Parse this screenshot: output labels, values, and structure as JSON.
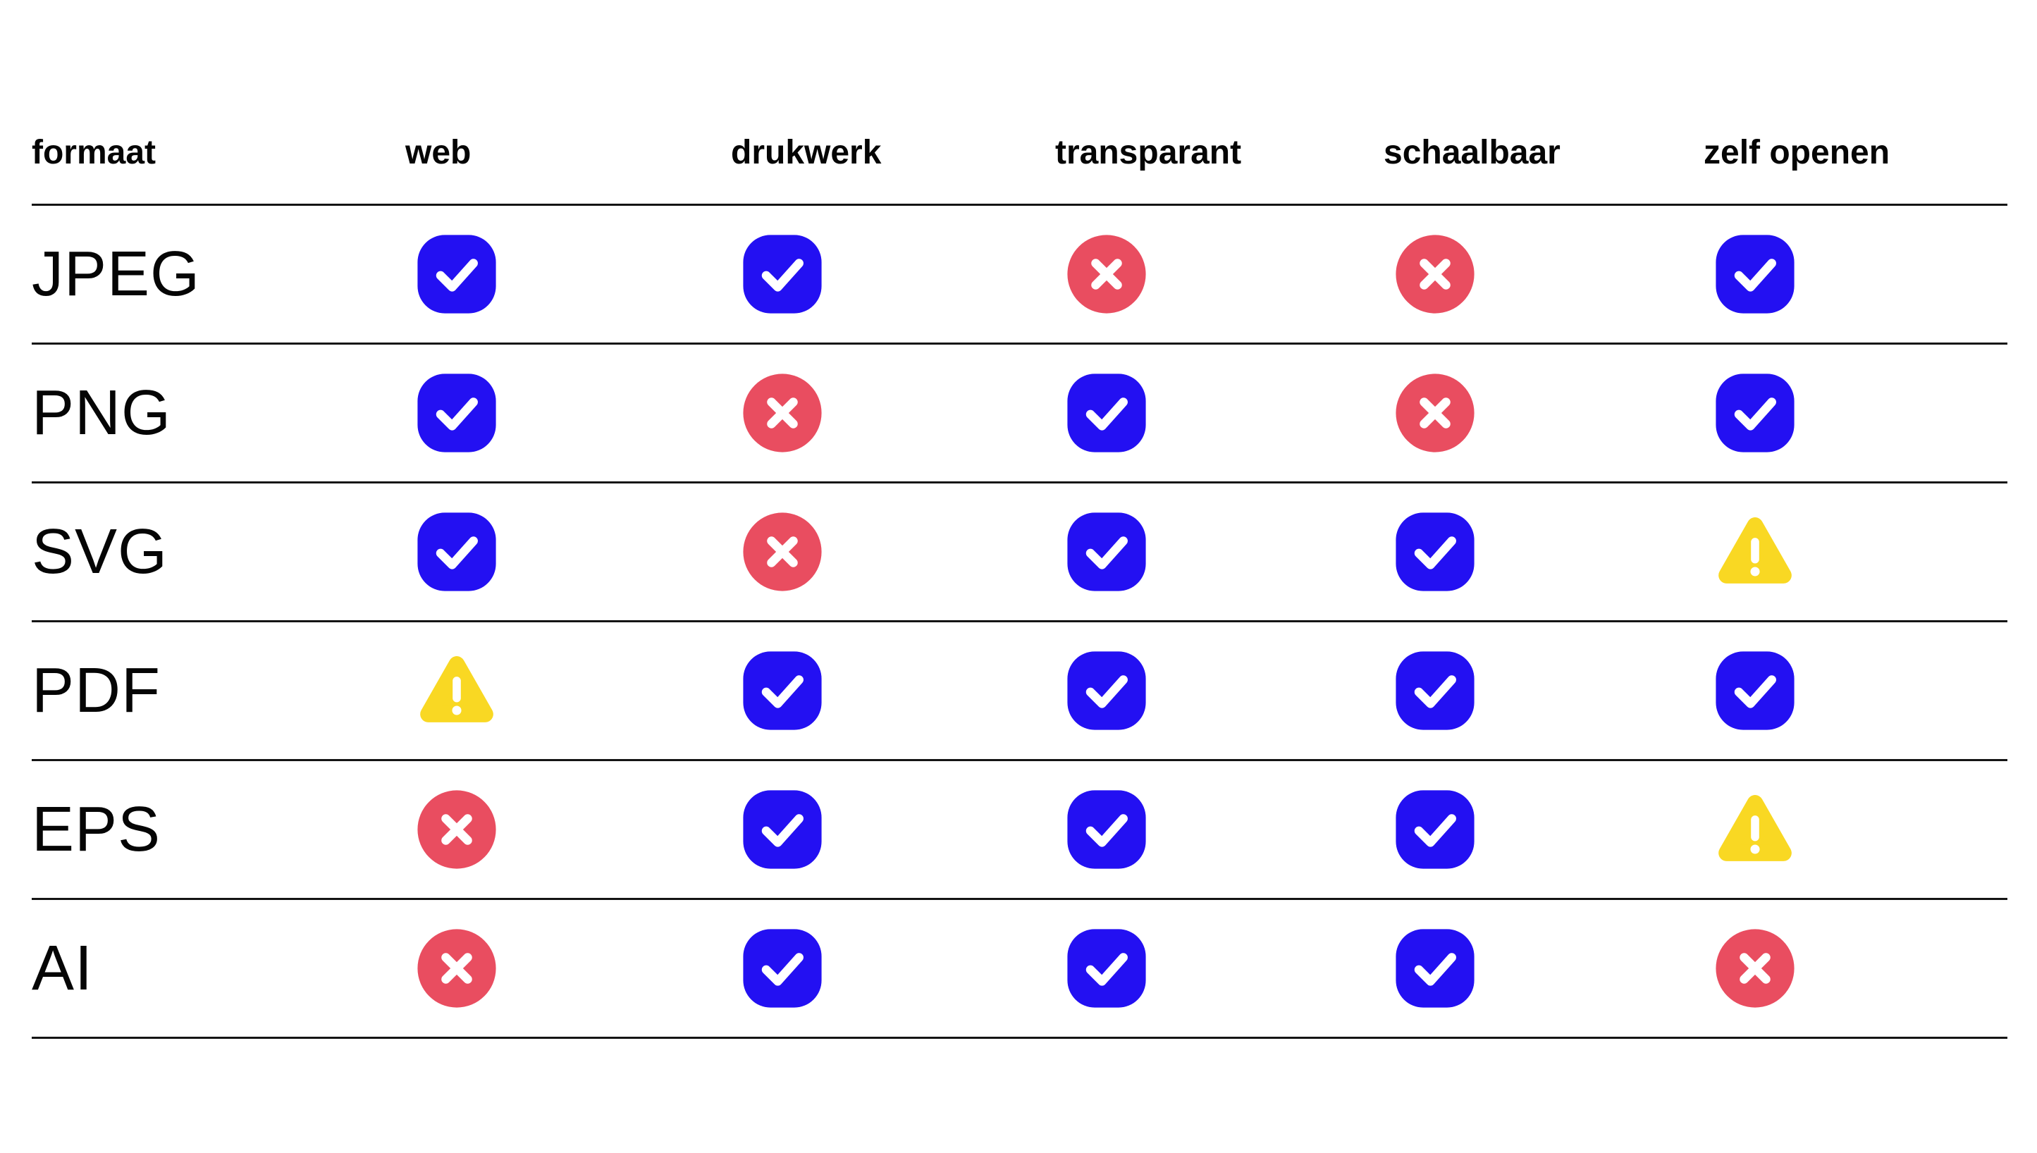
{
  "page": {
    "background": "#ffffff",
    "line_color": "#141414",
    "text_color": "#050505"
  },
  "colors": {
    "check_bg": "#2310F2",
    "cross_bg": "#E94D60",
    "warn_bg": "#F9D823",
    "glyph": "#FFFFFF"
  },
  "icon_names": {
    "yes": "check-icon",
    "no": "cross-icon",
    "warn": "warning-icon"
  },
  "table": {
    "columns": [
      {
        "key": "formaat",
        "label": "formaat"
      },
      {
        "key": "web",
        "label": "web"
      },
      {
        "key": "drukwerk",
        "label": "drukwerk"
      },
      {
        "key": "transparant",
        "label": "transparant"
      },
      {
        "key": "schaalbaar",
        "label": "schaalbaar"
      },
      {
        "key": "zelf-openen",
        "label": "zelf openen"
      }
    ],
    "rows": [
      {
        "format": "JPEG",
        "cells": [
          "yes",
          "yes",
          "no",
          "no",
          "yes"
        ]
      },
      {
        "format": "PNG",
        "cells": [
          "yes",
          "no",
          "yes",
          "no",
          "yes"
        ]
      },
      {
        "format": "SVG",
        "cells": [
          "yes",
          "no",
          "yes",
          "yes",
          "warn"
        ]
      },
      {
        "format": "PDF",
        "cells": [
          "warn",
          "yes",
          "yes",
          "yes",
          "yes"
        ]
      },
      {
        "format": "EPS",
        "cells": [
          "no",
          "yes",
          "yes",
          "yes",
          "warn"
        ]
      },
      {
        "format": "AI",
        "cells": [
          "no",
          "yes",
          "yes",
          "yes",
          "no"
        ]
      }
    ]
  }
}
